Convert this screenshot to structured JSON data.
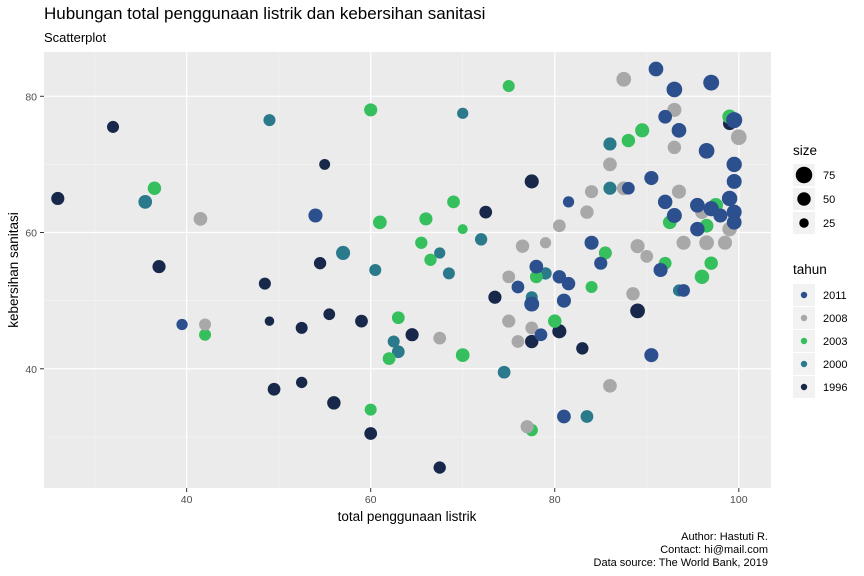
{
  "title": "Hubungan total penggunaan listrik dan kebersihan sanitasi",
  "subtitle": "Scatterplot",
  "caption": [
    "Author: Hastuti R.",
    "Contact: hi@mail.com",
    "Data source: The World Bank, 2019"
  ],
  "chart_data": {
    "type": "scatter",
    "xlabel": "total penggunaan listrik",
    "ylabel": "kebersihan sanitasi",
    "xlim": [
      24.5,
      103.5
    ],
    "ylim": [
      22.5,
      86.5
    ],
    "x_ticks": [
      40,
      60,
      80,
      100
    ],
    "y_ticks": [
      40,
      60,
      80
    ],
    "grid": true,
    "legend_position": "right",
    "size_legend": {
      "title": "size",
      "values": [
        75,
        50,
        25
      ]
    },
    "color_legend": {
      "title": "tahun",
      "entries": [
        {
          "name": "2011",
          "color": "#2c4f8e"
        },
        {
          "name": "2008",
          "color": "#a8a8a8"
        },
        {
          "name": "2003",
          "color": "#35bf5d"
        },
        {
          "name": "2000",
          "color": "#2a7a8c"
        },
        {
          "name": "1996",
          "color": "#18284a"
        }
      ]
    },
    "series": [
      {
        "name": "2011",
        "color": "#2c4f8e",
        "points": [
          [
            91,
            84,
            60
          ],
          [
            93,
            81,
            68
          ],
          [
            97,
            82,
            70
          ],
          [
            99.5,
            76.5,
            72
          ],
          [
            93.5,
            75,
            60
          ],
          [
            92,
            77,
            52
          ],
          [
            96.5,
            72,
            68
          ],
          [
            99.5,
            70,
            65
          ],
          [
            99.5,
            67.5,
            62
          ],
          [
            90.5,
            68,
            55
          ],
          [
            88,
            66.5,
            45
          ],
          [
            92,
            64.5,
            58
          ],
          [
            93,
            62.5,
            62
          ],
          [
            95.5,
            64,
            60
          ],
          [
            97,
            63.5,
            64
          ],
          [
            99,
            65,
            66
          ],
          [
            99.5,
            63,
            62
          ],
          [
            99.5,
            61.5,
            60
          ],
          [
            98,
            62.5,
            55
          ],
          [
            95.5,
            60.5,
            58
          ],
          [
            91.5,
            54.5,
            55
          ],
          [
            54,
            62.5,
            55
          ],
          [
            39.5,
            46.5,
            35
          ],
          [
            78,
            55,
            52
          ],
          [
            76,
            52,
            45
          ],
          [
            80.5,
            53.5,
            50
          ],
          [
            81.5,
            52.5,
            50
          ],
          [
            81,
            50,
            55
          ],
          [
            77.5,
            49.5,
            62
          ],
          [
            84,
            58.5,
            55
          ],
          [
            81.5,
            64.5,
            35
          ],
          [
            85,
            55.5,
            45
          ],
          [
            78.5,
            45,
            45
          ],
          [
            94,
            51.5,
            45
          ],
          [
            81,
            33,
            52
          ],
          [
            90.5,
            42,
            55
          ]
        ]
      },
      {
        "name": "2008",
        "color": "#a8a8a8",
        "points": [
          [
            87.5,
            82.5,
            60
          ],
          [
            93,
            78,
            55
          ],
          [
            93,
            72.5,
            50
          ],
          [
            86,
            70,
            52
          ],
          [
            84,
            66,
            48
          ],
          [
            87.5,
            66.5,
            52
          ],
          [
            83.5,
            63,
            50
          ],
          [
            80.5,
            61,
            45
          ],
          [
            93.5,
            66,
            55
          ],
          [
            100,
            74,
            68
          ],
          [
            96,
            63,
            52
          ],
          [
            99,
            60.5,
            58
          ],
          [
            94,
            58.5,
            55
          ],
          [
            96.5,
            58.5,
            60
          ],
          [
            98.5,
            58.5,
            55
          ],
          [
            89,
            58,
            55
          ],
          [
            90,
            56.5,
            45
          ],
          [
            79,
            58.5,
            35
          ],
          [
            76.5,
            58,
            50
          ],
          [
            75,
            53.5,
            45
          ],
          [
            75,
            47,
            48
          ],
          [
            77.5,
            46,
            45
          ],
          [
            76,
            44,
            45
          ],
          [
            67.5,
            44.5,
            45
          ],
          [
            86,
            37.5,
            52
          ],
          [
            77,
            31.5,
            48
          ],
          [
            41.5,
            62,
            52
          ],
          [
            42,
            46.5,
            40
          ],
          [
            88.5,
            51,
            50
          ]
        ]
      },
      {
        "name": "2003",
        "color": "#35bf5d",
        "points": [
          [
            75,
            81.5,
            40
          ],
          [
            60,
            78,
            48
          ],
          [
            99,
            77,
            58
          ],
          [
            89.5,
            75,
            55
          ],
          [
            88,
            73.5,
            50
          ],
          [
            97.5,
            64,
            58
          ],
          [
            96.5,
            61,
            52
          ],
          [
            92.5,
            61.5,
            52
          ],
          [
            97,
            55.5,
            50
          ],
          [
            96,
            53.5,
            58
          ],
          [
            92,
            55.5,
            45
          ],
          [
            85.5,
            57,
            45
          ],
          [
            84,
            52,
            40
          ],
          [
            78,
            53.5,
            45
          ],
          [
            80,
            47,
            50
          ],
          [
            69,
            64.5,
            45
          ],
          [
            66,
            62,
            48
          ],
          [
            61,
            61.5,
            52
          ],
          [
            36.5,
            66.5,
            50
          ],
          [
            65.5,
            58.5,
            42
          ],
          [
            66.5,
            56,
            42
          ],
          [
            70,
            60.5,
            28
          ],
          [
            63,
            47.5,
            45
          ],
          [
            62,
            41.5,
            45
          ],
          [
            70,
            42,
            52
          ],
          [
            60,
            34,
            40
          ],
          [
            42,
            45,
            40
          ],
          [
            77.5,
            31,
            42
          ]
        ]
      },
      {
        "name": "2000",
        "color": "#2a7a8c",
        "points": [
          [
            49,
            76.5,
            40
          ],
          [
            70,
            77.5,
            35
          ],
          [
            35.5,
            64.5,
            52
          ],
          [
            57,
            57,
            55
          ],
          [
            60.5,
            54.5,
            40
          ],
          [
            68.5,
            54,
            40
          ],
          [
            67.5,
            57,
            35
          ],
          [
            72,
            59,
            42
          ],
          [
            79,
            54,
            42
          ],
          [
            77.5,
            50.5,
            40
          ],
          [
            86,
            73,
            48
          ],
          [
            86,
            66.5,
            48
          ],
          [
            85,
            55.5,
            48
          ],
          [
            63,
            42.5,
            45
          ],
          [
            62.5,
            44,
            40
          ],
          [
            74.5,
            39.5,
            45
          ],
          [
            83.5,
            33,
            45
          ],
          [
            93.5,
            51.5,
            40
          ]
        ]
      },
      {
        "name": "1996",
        "color": "#18284a",
        "points": [
          [
            26,
            65,
            48
          ],
          [
            32,
            75.5,
            40
          ],
          [
            55,
            70,
            33
          ],
          [
            37,
            55,
            48
          ],
          [
            54.5,
            55.5,
            42
          ],
          [
            48.5,
            52.5,
            40
          ],
          [
            49,
            47,
            25
          ],
          [
            52.5,
            46,
            40
          ],
          [
            55.5,
            48,
            38
          ],
          [
            59,
            47,
            45
          ],
          [
            64.5,
            45,
            48
          ],
          [
            49.5,
            37,
            45
          ],
          [
            52.5,
            38,
            36
          ],
          [
            56,
            35,
            50
          ],
          [
            60,
            30.5,
            45
          ],
          [
            67.5,
            25.5,
            42
          ],
          [
            72.5,
            63,
            45
          ],
          [
            77.5,
            67.5,
            55
          ],
          [
            73.5,
            50.5,
            48
          ],
          [
            77.5,
            44,
            50
          ],
          [
            80.5,
            45.5,
            55
          ],
          [
            83,
            43,
            42
          ],
          [
            85.5,
            57,
            45
          ],
          [
            89,
            48.5,
            60
          ],
          [
            99,
            76,
            48
          ]
        ]
      }
    ]
  }
}
